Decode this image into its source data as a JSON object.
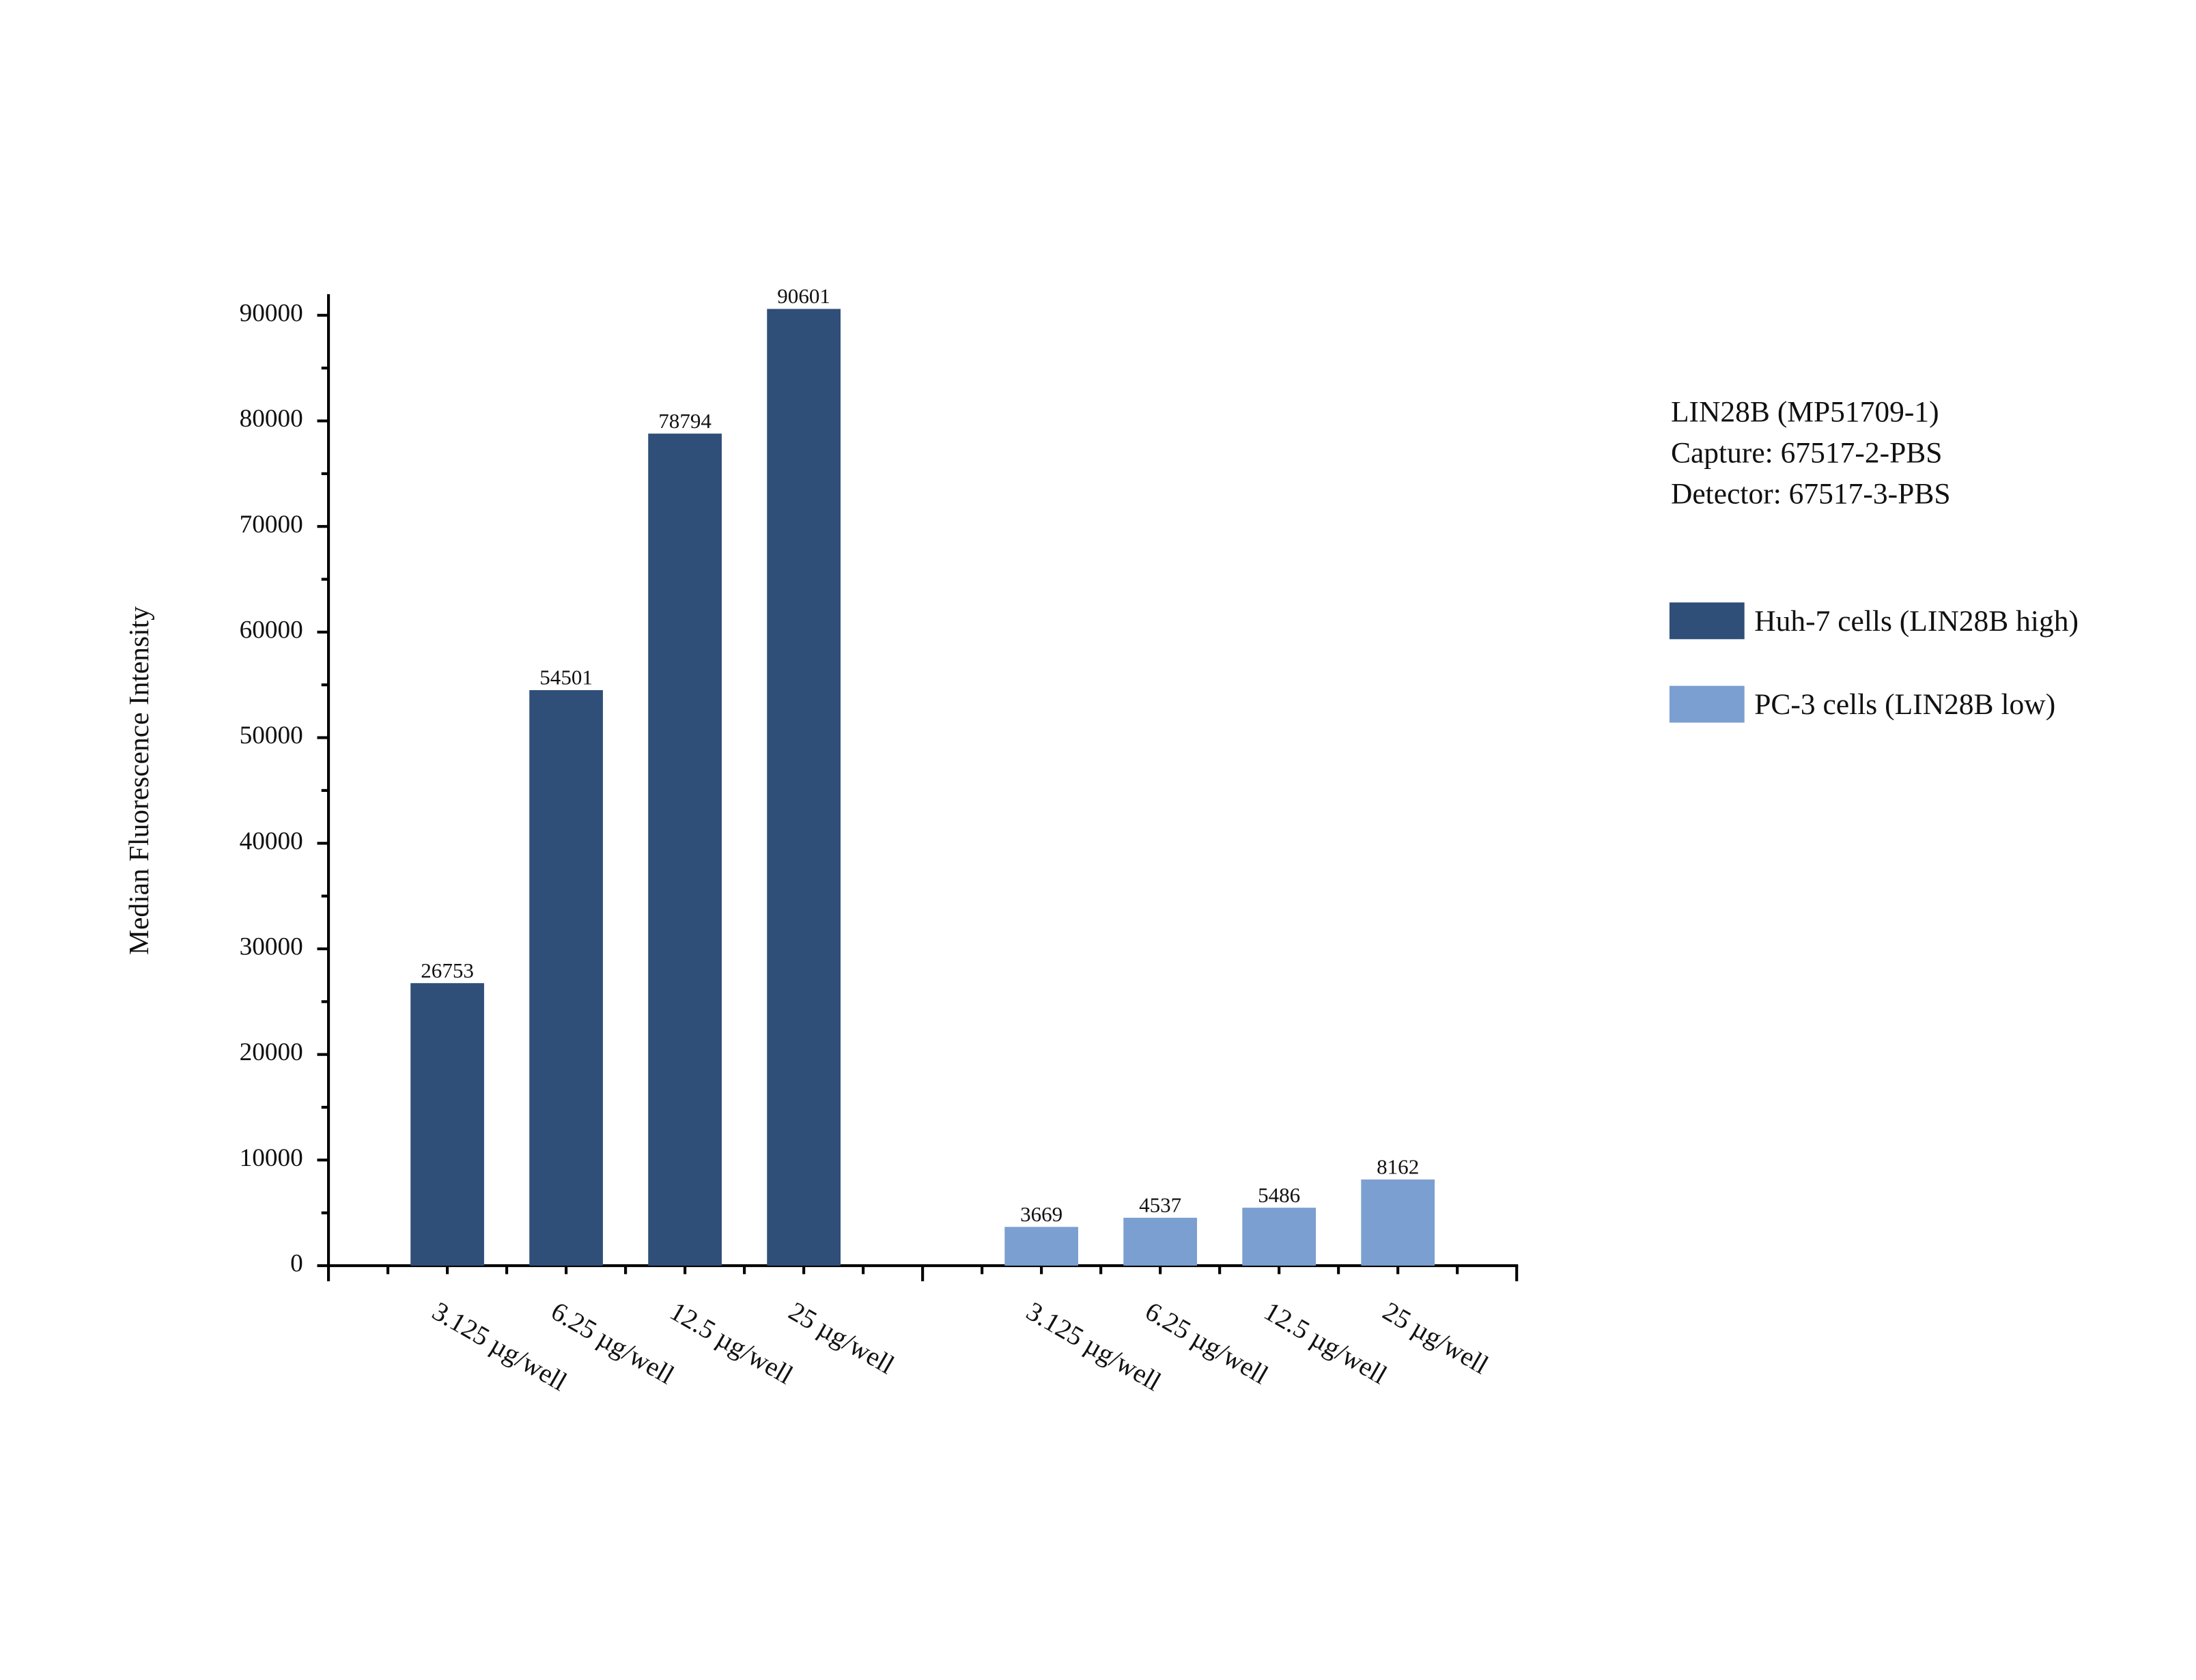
{
  "chart_data": {
    "type": "bar",
    "y_label": "Median Fluorescence Intensity",
    "annotations": [
      "LIN28B (MP51709-1)",
      "Capture: 67517-2-PBS",
      "Detector: 67517-3-PBS"
    ],
    "categories": [
      "3.125 µg/well",
      "6.25 µg/well",
      "12.5 µg/well",
      "25 µg/well",
      null,
      "3.125 µg/well",
      "6.25 µg/well",
      "12.5 µg/well",
      "25 µg/well"
    ],
    "series": [
      {
        "name": "Huh-7 cells (LIN28B high)",
        "color": "#2f4f78",
        "values": [
          26753,
          54501,
          78794,
          90601,
          null,
          null,
          null,
          null,
          null
        ]
      },
      {
        "name": "PC-3 cells (LIN28B low)",
        "color": "#7b9fd0",
        "values": [
          null,
          null,
          null,
          null,
          null,
          3669,
          4537,
          5486,
          8162
        ]
      }
    ],
    "ylim": [
      0,
      92000
    ],
    "yticks": [
      0,
      10000,
      20000,
      30000,
      40000,
      50000,
      60000,
      70000,
      80000,
      90000
    ],
    "yminorticks": [
      5000,
      15000,
      25000,
      35000,
      45000,
      55000,
      65000,
      75000,
      85000
    ],
    "grid": false
  }
}
